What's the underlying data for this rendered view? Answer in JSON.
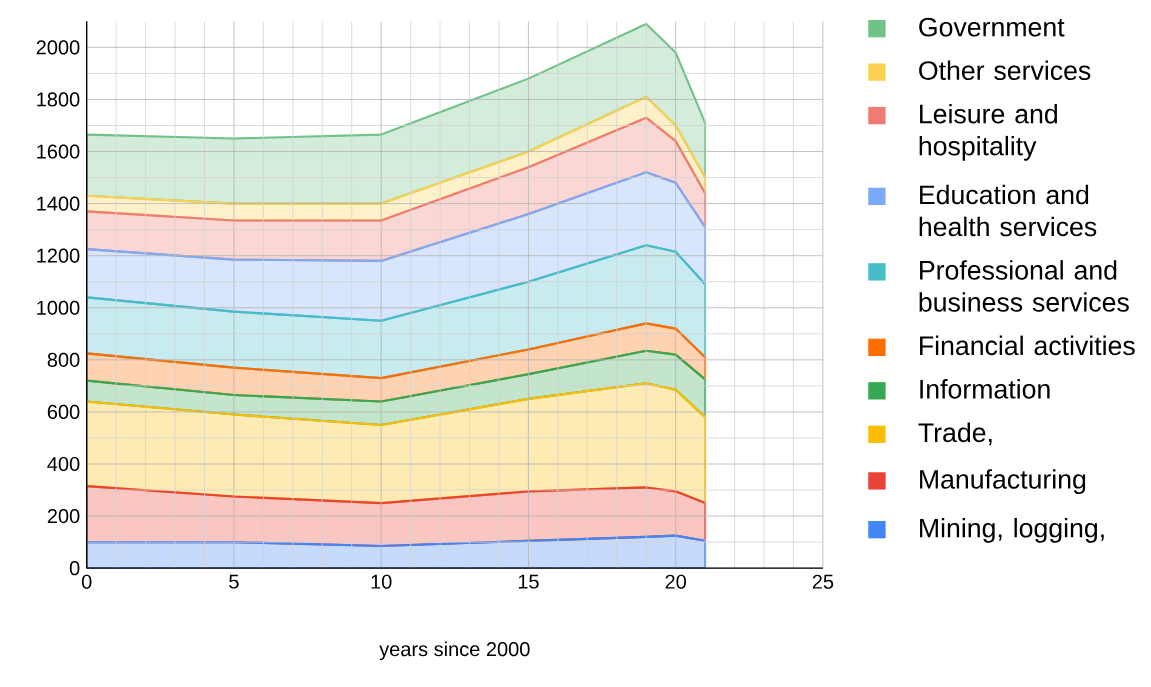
{
  "chart_data": {
    "type": "area",
    "stacked": true,
    "xlabel": "years since 2000",
    "x": [
      0,
      5,
      10,
      15,
      19,
      20,
      21
    ],
    "xlim": [
      0,
      25
    ],
    "xticks": [
      0,
      5,
      10,
      15,
      20,
      25
    ],
    "ylim": [
      0,
      2100
    ],
    "yticks": [
      0,
      200,
      400,
      600,
      800,
      1000,
      1200,
      1400,
      1600,
      1800,
      2000
    ],
    "grid": true,
    "legend": "right",
    "series": [
      {
        "name": "Mining, logging,",
        "color": "#4285f4",
        "values": [
          100,
          100,
          85,
          105,
          120,
          125,
          105
        ]
      },
      {
        "name": "Manufacturing",
        "color": "#ea4335",
        "values": [
          215,
          175,
          165,
          190,
          190,
          170,
          145
        ]
      },
      {
        "name": "Trade,",
        "color": "#fbbc04",
        "values": [
          325,
          315,
          300,
          355,
          400,
          390,
          330
        ]
      },
      {
        "name": "Information",
        "color": "#34a853",
        "values": [
          80,
          75,
          90,
          95,
          125,
          135,
          145
        ]
      },
      {
        "name": "Financial activities",
        "color": "#ff6d01",
        "values": [
          105,
          105,
          90,
          95,
          105,
          100,
          85
        ]
      },
      {
        "name": "Professional and business services",
        "color": "#46bdc6",
        "values": [
          215,
          215,
          220,
          260,
          300,
          295,
          280
        ]
      },
      {
        "name": "Education and health services",
        "color": "#7baaf7",
        "values": [
          185,
          200,
          230,
          260,
          280,
          265,
          220
        ]
      },
      {
        "name": "Leisure and hospitality",
        "color": "#f07b72",
        "values": [
          145,
          150,
          155,
          180,
          210,
          160,
          130
        ]
      },
      {
        "name": "Other services",
        "color": "#fcd04f",
        "values": [
          60,
          65,
          65,
          60,
          80,
          60,
          60
        ]
      },
      {
        "name": "Government",
        "color": "#71c287",
        "values": [
          235,
          250,
          265,
          280,
          280,
          280,
          210
        ]
      }
    ]
  }
}
